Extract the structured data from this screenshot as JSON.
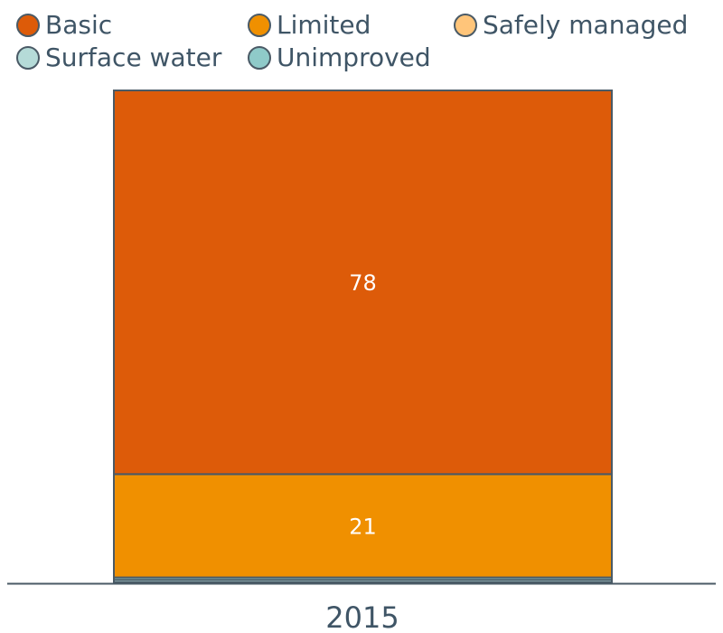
{
  "legend": {
    "items": [
      {
        "label": "Basic",
        "color": "#dd5b09"
      },
      {
        "label": "Limited",
        "color": "#f09000"
      },
      {
        "label": "Safely managed",
        "color": "#ffc57a"
      },
      {
        "label": "Surface water",
        "color": "#b5dbd8"
      },
      {
        "label": "Unimproved",
        "color": "#8fcac9"
      }
    ]
  },
  "chart_data": {
    "type": "bar",
    "stacked": true,
    "categories": [
      "2015"
    ],
    "ylim": [
      0,
      100
    ],
    "series": [
      {
        "name": "Surface water",
        "values": [
          0.5
        ],
        "color": "#b5dbd8"
      },
      {
        "name": "Unimproved",
        "values": [
          0.5
        ],
        "color": "#8fcac9"
      },
      {
        "name": "Limited",
        "values": [
          21
        ],
        "color": "#f09000",
        "data_label": "21"
      },
      {
        "name": "Basic",
        "values": [
          78
        ],
        "color": "#dd5b09",
        "data_label": "78"
      },
      {
        "name": "Safely managed",
        "values": [
          0
        ],
        "color": "#ffc57a"
      }
    ]
  }
}
